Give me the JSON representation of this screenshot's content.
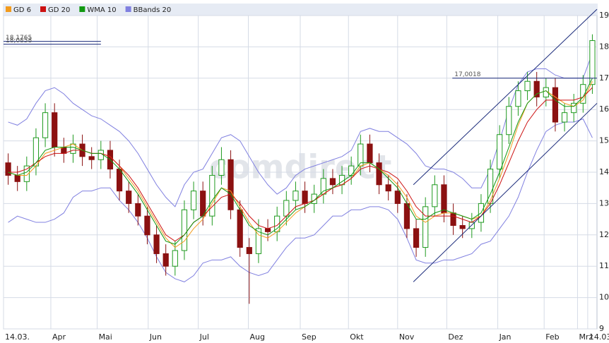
{
  "chart_data": {
    "type": "candlestick",
    "x": [
      0,
      1,
      2,
      3,
      4,
      5,
      6,
      7,
      8,
      9,
      10,
      11,
      12,
      13,
      14,
      15,
      16,
      17,
      18,
      19,
      20,
      21,
      22,
      23,
      24,
      25,
      26,
      27,
      28,
      29,
      30,
      31,
      32,
      33,
      34,
      35,
      36,
      37,
      38,
      39,
      40,
      41,
      42,
      43,
      44,
      45,
      46,
      47,
      48,
      49,
      50,
      51,
      52,
      53,
      54,
      55,
      56,
      57,
      58,
      59,
      60,
      61,
      62,
      63
    ],
    "open": [
      14.3,
      13.9,
      13.7,
      14.2,
      15.1,
      15.9,
      14.8,
      14.6,
      14.9,
      14.5,
      14.4,
      14.7,
      14.1,
      13.4,
      13.0,
      12.6,
      12.0,
      11.4,
      11.0,
      11.5,
      12.8,
      13.4,
      12.6,
      13.9,
      14.4,
      12.8,
      11.6,
      11.4,
      12.2,
      12.1,
      12.6,
      13.1,
      13.4,
      13.0,
      13.3,
      13.8,
      13.6,
      13.9,
      14.2,
      14.9,
      14.3,
      13.6,
      13.4,
      13.0,
      12.2,
      11.6,
      12.9,
      13.6,
      12.7,
      12.3,
      12.2,
      12.4,
      13.0,
      14.1,
      15.2,
      16.1,
      16.6,
      16.9,
      16.4,
      16.7,
      15.6,
      15.9,
      16.2,
      16.8
    ],
    "high": [
      14.6,
      14.2,
      14.5,
      15.4,
      16.2,
      16.2,
      15.1,
      15.2,
      15.2,
      14.8,
      15.0,
      15.0,
      14.4,
      13.7,
      13.3,
      12.9,
      12.3,
      11.7,
      11.8,
      13.1,
      13.7,
      13.7,
      14.2,
      14.8,
      14.7,
      13.1,
      11.9,
      12.5,
      12.5,
      12.9,
      13.4,
      13.7,
      13.7,
      13.6,
      14.1,
      14.1,
      14.2,
      14.5,
      15.2,
      15.2,
      14.6,
      13.9,
      13.7,
      13.3,
      12.5,
      13.2,
      13.9,
      13.9,
      13.0,
      12.6,
      12.7,
      13.3,
      14.4,
      15.5,
      16.4,
      16.9,
      17.2,
      17.2,
      17.0,
      17.0,
      16.2,
      16.5,
      17.1,
      18.4
    ],
    "low": [
      13.6,
      13.4,
      13.4,
      13.9,
      14.8,
      14.5,
      14.3,
      14.3,
      14.2,
      14.1,
      14.1,
      13.8,
      13.1,
      12.7,
      12.3,
      11.7,
      11.1,
      10.7,
      10.7,
      11.2,
      12.5,
      12.3,
      12.3,
      13.6,
      12.5,
      11.3,
      9.8,
      11.1,
      11.8,
      11.8,
      12.3,
      12.8,
      12.7,
      12.7,
      13.0,
      13.3,
      13.3,
      13.6,
      13.9,
      14.0,
      13.3,
      13.1,
      12.7,
      11.9,
      11.3,
      11.3,
      12.6,
      12.4,
      12.0,
      11.9,
      11.9,
      12.1,
      12.7,
      13.8,
      14.9,
      15.8,
      16.3,
      16.1,
      16.1,
      15.3,
      15.3,
      15.6,
      15.9,
      16.5
    ],
    "close": [
      13.9,
      13.7,
      14.2,
      15.1,
      15.9,
      14.8,
      14.6,
      14.9,
      14.5,
      14.4,
      14.7,
      14.1,
      13.4,
      13.0,
      12.6,
      12.0,
      11.4,
      11.0,
      11.5,
      12.8,
      13.4,
      12.6,
      13.9,
      14.4,
      12.8,
      11.6,
      11.4,
      12.2,
      12.1,
      12.6,
      13.1,
      13.4,
      13.0,
      13.3,
      13.8,
      13.6,
      13.9,
      14.2,
      14.9,
      14.3,
      13.6,
      13.4,
      13.0,
      12.2,
      11.6,
      12.9,
      13.6,
      12.7,
      12.3,
      12.2,
      12.4,
      13.0,
      14.1,
      15.2,
      16.1,
      16.6,
      16.9,
      16.4,
      16.7,
      15.6,
      15.9,
      16.2,
      16.8,
      18.2
    ],
    "up_color": "#1f9a1f",
    "down_color": "#8b1111",
    "series": [
      {
        "name": "GD 6",
        "color": "#f29b1d",
        "values": [
          14.0,
          13.9,
          13.9,
          14.2,
          14.6,
          14.7,
          14.8,
          14.9,
          14.7,
          14.6,
          14.6,
          14.5,
          14.2,
          13.8,
          13.4,
          12.9,
          12.4,
          11.9,
          11.6,
          11.8,
          12.2,
          12.5,
          13.0,
          13.5,
          13.4,
          12.9,
          12.4,
          12.0,
          11.9,
          12.1,
          12.4,
          12.7,
          12.9,
          13.1,
          13.3,
          13.5,
          13.6,
          13.8,
          14.2,
          14.3,
          14.1,
          13.9,
          13.6,
          13.2,
          12.6,
          12.4,
          12.6,
          12.7,
          12.7,
          12.6,
          12.5,
          12.6,
          13.1,
          13.8,
          14.6,
          15.5,
          16.2,
          16.5,
          16.6,
          16.4,
          16.2,
          16.1,
          16.3,
          16.9
        ]
      },
      {
        "name": "GD 20",
        "color": "#cc1111",
        "values": [
          14.0,
          14.0,
          14.1,
          14.3,
          14.5,
          14.6,
          14.6,
          14.7,
          14.7,
          14.6,
          14.6,
          14.5,
          14.2,
          13.9,
          13.5,
          13.0,
          12.5,
          12.0,
          11.8,
          12.0,
          12.4,
          12.6,
          12.9,
          13.2,
          13.3,
          13.0,
          12.6,
          12.3,
          12.2,
          12.3,
          12.6,
          12.9,
          13.0,
          13.1,
          13.3,
          13.5,
          13.6,
          13.8,
          14.1,
          14.2,
          14.1,
          14.0,
          13.8,
          13.4,
          12.9,
          12.6,
          12.6,
          12.6,
          12.6,
          12.5,
          12.4,
          12.6,
          13.0,
          13.6,
          14.3,
          15.0,
          15.6,
          16.0,
          16.3,
          16.3,
          16.3,
          16.3,
          16.4,
          16.7
        ]
      },
      {
        "name": "WMA 10",
        "color": "#119911",
        "values": [
          14.0,
          13.9,
          14.0,
          14.3,
          14.7,
          14.8,
          14.8,
          14.8,
          14.7,
          14.6,
          14.6,
          14.4,
          14.1,
          13.7,
          13.3,
          12.8,
          12.3,
          11.8,
          11.7,
          12.0,
          12.4,
          12.6,
          13.1,
          13.5,
          13.3,
          12.8,
          12.3,
          12.1,
          12.0,
          12.2,
          12.5,
          12.8,
          12.9,
          13.1,
          13.4,
          13.5,
          13.7,
          13.9,
          14.3,
          14.3,
          14.1,
          13.8,
          13.5,
          13.0,
          12.5,
          12.5,
          12.7,
          12.8,
          12.7,
          12.6,
          12.5,
          12.7,
          13.3,
          14.0,
          14.8,
          15.6,
          16.2,
          16.5,
          16.6,
          16.3,
          16.1,
          16.1,
          16.4,
          17.0
        ]
      },
      {
        "name": "BBands 20",
        "color": "#8080e0",
        "upper": [
          15.6,
          15.5,
          15.7,
          16.2,
          16.6,
          16.7,
          16.5,
          16.2,
          16.0,
          15.8,
          15.7,
          15.5,
          15.3,
          15.0,
          14.6,
          14.1,
          13.6,
          13.2,
          12.9,
          13.6,
          14.0,
          14.1,
          14.6,
          15.1,
          15.2,
          15.0,
          14.5,
          14.0,
          13.6,
          13.3,
          13.5,
          13.9,
          14.1,
          14.2,
          14.3,
          14.4,
          14.5,
          14.7,
          15.3,
          15.4,
          15.3,
          15.3,
          15.1,
          14.9,
          14.6,
          14.2,
          14.1,
          14.1,
          14.0,
          13.8,
          13.5,
          13.5,
          14.1,
          15.0,
          16.0,
          16.8,
          17.2,
          17.3,
          17.3,
          17.1,
          17.0,
          17.0,
          17.0,
          17.8
        ],
        "lower": [
          12.4,
          12.6,
          12.5,
          12.4,
          12.4,
          12.5,
          12.7,
          13.2,
          13.4,
          13.4,
          13.5,
          13.5,
          13.1,
          12.8,
          12.4,
          11.9,
          11.3,
          10.8,
          10.6,
          10.5,
          10.7,
          11.1,
          11.2,
          11.2,
          11.3,
          11.0,
          10.8,
          10.7,
          10.8,
          11.2,
          11.6,
          11.9,
          11.9,
          12.0,
          12.3,
          12.6,
          12.6,
          12.8,
          12.8,
          12.9,
          12.9,
          12.8,
          12.5,
          11.9,
          11.2,
          11.1,
          11.1,
          11.2,
          11.2,
          11.3,
          11.4,
          11.7,
          11.8,
          12.2,
          12.6,
          13.2,
          14.0,
          14.7,
          15.3,
          15.5,
          15.6,
          15.6,
          15.7,
          15.1
        ]
      }
    ],
    "hlines": [
      {
        "value": 18.1765,
        "label": "18,1765",
        "from": -0.5,
        "to": 10.0
      },
      {
        "value": 18.0858,
        "label": "18,0858",
        "from": -0.5,
        "to": 10.0
      },
      {
        "value": 17.0018,
        "label": "17,0018",
        "from": 47.9,
        "to": 63.5
      }
    ],
    "trendlines": [
      {
        "x": [
          43.7,
          63.5
        ],
        "y": [
          13.6,
          19.2
        ]
      },
      {
        "x": [
          43.7,
          63.5
        ],
        "y": [
          10.5,
          16.2
        ]
      }
    ],
    "watermark": "comdirect",
    "xlim": [
      -0.5,
      63.5
    ],
    "xticks": [
      {
        "value": -0.5,
        "label": "14.03."
      },
      {
        "value": 4.6,
        "label": "Apr"
      },
      {
        "value": 9.6,
        "label": "Mai"
      },
      {
        "value": 15.1,
        "label": "Jun"
      },
      {
        "value": 20.5,
        "label": "Jul"
      },
      {
        "value": 25.9,
        "label": "Aug"
      },
      {
        "value": 31.5,
        "label": "Sep"
      },
      {
        "value": 36.7,
        "label": "Okt"
      },
      {
        "value": 42.0,
        "label": "Nov"
      },
      {
        "value": 47.3,
        "label": "Dez"
      },
      {
        "value": 52.8,
        "label": "Jan"
      },
      {
        "value": 57.8,
        "label": "Feb"
      },
      {
        "value": 61.4,
        "label": "Mrz"
      },
      {
        "value": 62.5,
        "label": "14.03."
      }
    ],
    "ylim": [
      9,
      19
    ],
    "yticks": [
      9,
      10,
      11,
      12,
      13,
      14,
      15,
      16,
      17,
      18,
      19
    ],
    "grid": true
  }
}
